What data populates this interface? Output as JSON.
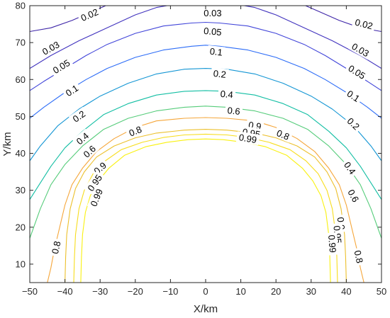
{
  "chart_data": {
    "type": "contour",
    "title": "",
    "xlabel": "X/km",
    "ylabel": "Y/km",
    "xlim": [
      -50,
      50
    ],
    "ylim": [
      5,
      80
    ],
    "xticks": [
      -50,
      -40,
      -30,
      -20,
      -10,
      0,
      10,
      20,
      30,
      40,
      50
    ],
    "yticks": [
      10,
      20,
      30,
      40,
      50,
      60,
      70,
      80
    ],
    "xtick_labels": [
      "−50",
      "−40",
      "−30",
      "−20",
      "−10",
      "0",
      "10",
      "20",
      "30",
      "40",
      "50"
    ],
    "ytick_labels": [
      "10",
      "20",
      "30",
      "40",
      "50",
      "60",
      "70",
      "80"
    ],
    "grid": false,
    "box": true,
    "levels": [
      {
        "level": "0.02",
        "color": "#3e26a8",
        "points": [
          [
            -50,
            73
          ],
          [
            -44,
            74
          ],
          [
            -38,
            76
          ],
          [
            -32,
            78.5
          ],
          [
            -26,
            81
          ]
        ],
        "mirror": true,
        "labels": [
          {
            "text": "0.02",
            "x": -33,
            "y": 77.5
          },
          {
            "text": "0.02",
            "x": 45,
            "y": 75
          }
        ]
      },
      {
        "level": "0.03",
        "color": "#4133be",
        "points": [
          [
            -50,
            63
          ],
          [
            -44,
            66.5
          ],
          [
            -36,
            70.5
          ],
          [
            -28,
            74
          ],
          [
            -20,
            77.5
          ],
          [
            -14,
            79.5
          ],
          [
            -8,
            80.5
          ],
          [
            0,
            81
          ]
        ],
        "mirror": true,
        "labels": [
          {
            "text": "0.03",
            "x": 2,
            "y": 78
          },
          {
            "text": "0.03",
            "x": -44,
            "y": 68.5
          },
          {
            "text": "0.03",
            "x": 44,
            "y": 68
          }
        ]
      },
      {
        "level": "0.05",
        "color": "#4145d9",
        "points": [
          [
            -50,
            57
          ],
          [
            -46,
            59.5
          ],
          [
            -40,
            63
          ],
          [
            -34,
            66.5
          ],
          [
            -28,
            69.5
          ],
          [
            -20,
            72.5
          ],
          [
            -12,
            74.5
          ],
          [
            -4,
            75.3
          ],
          [
            0,
            75.5
          ]
        ],
        "mirror": true,
        "labels": [
          {
            "text": "0.05",
            "x": 2,
            "y": 73
          },
          {
            "text": "0.05",
            "x": -41,
            "y": 63.5
          },
          {
            "text": "0.05",
            "x": 43,
            "y": 62
          }
        ]
      },
      {
        "level": "0.1",
        "color": "#2c6cf7",
        "points": [
          [
            -50,
            49.5
          ],
          [
            -46,
            52.5
          ],
          [
            -40,
            56.5
          ],
          [
            -34,
            60
          ],
          [
            -28,
            63
          ],
          [
            -20,
            66
          ],
          [
            -12,
            68
          ],
          [
            -4,
            69
          ],
          [
            0,
            69.3
          ]
        ],
        "mirror": true,
        "labels": [
          {
            "text": "0.1",
            "x": 3,
            "y": 67.5
          },
          {
            "text": "0.1",
            "x": -38,
            "y": 57
          },
          {
            "text": "0.1",
            "x": 42,
            "y": 55.5
          }
        ]
      },
      {
        "level": "0.2",
        "color": "#1496d4",
        "points": [
          [
            -50,
            38
          ],
          [
            -47,
            42
          ],
          [
            -42,
            47.5
          ],
          [
            -36,
            52
          ],
          [
            -30,
            55.5
          ],
          [
            -22,
            59
          ],
          [
            -14,
            61.5
          ],
          [
            -6,
            62.8
          ],
          [
            0,
            63
          ]
        ],
        "mirror": true,
        "labels": [
          {
            "text": "0.2",
            "x": 4,
            "y": 61.5
          },
          {
            "text": "0.2",
            "x": -36,
            "y": 50
          },
          {
            "text": "0.2",
            "x": 42,
            "y": 48
          }
        ]
      },
      {
        "level": "0.4",
        "color": "#12bea3",
        "points": [
          [
            -50,
            27.5
          ],
          [
            -48,
            30.5
          ],
          [
            -44,
            36.5
          ],
          [
            -40,
            41.5
          ],
          [
            -35,
            46
          ],
          [
            -29,
            50.5
          ],
          [
            -22,
            53.5
          ],
          [
            -14,
            55.8
          ],
          [
            -6,
            56.8
          ],
          [
            0,
            57
          ]
        ],
        "mirror": true,
        "labels": [
          {
            "text": "0.4",
            "x": 6,
            "y": 56
          },
          {
            "text": "0.4",
            "x": -35,
            "y": 44
          },
          {
            "text": "0.4",
            "x": 41,
            "y": 36
          }
        ]
      },
      {
        "level": "0.6",
        "color": "#55cc7a",
        "points": [
          [
            -50,
            17
          ],
          [
            -47,
            25
          ],
          [
            -44,
            31.5
          ],
          [
            -40,
            37
          ],
          [
            -35,
            42
          ],
          [
            -29,
            46.5
          ],
          [
            -22,
            49.5
          ],
          [
            -14,
            51.5
          ],
          [
            -6,
            52.5
          ],
          [
            0,
            52.8
          ]
        ],
        "mirror": true,
        "labels": [
          {
            "text": "0.6",
            "x": 8,
            "y": 51.5
          },
          {
            "text": "0.6",
            "x": -33,
            "y": 40.5
          },
          {
            "text": "0.6",
            "x": 42,
            "y": 28.5
          }
        ]
      },
      {
        "level": "0.8",
        "color": "#f5a63a",
        "points": [
          [
            -45,
            5
          ],
          [
            -44,
            9
          ],
          [
            -43,
            14
          ],
          [
            -41.5,
            20
          ],
          [
            -40,
            26
          ],
          [
            -38,
            31.5
          ],
          [
            -35,
            36
          ],
          [
            -31,
            40.5
          ],
          [
            -26,
            44
          ],
          [
            -20,
            47
          ],
          [
            -14,
            48.8
          ],
          [
            -6,
            49.5
          ],
          [
            0,
            49.7
          ]
        ],
        "mirror": true,
        "labels": [
          {
            "text": "0.8",
            "x": -20,
            "y": 46
          },
          {
            "text": "0.8",
            "x": 22,
            "y": 45
          },
          {
            "text": "0.8",
            "x": -42.5,
            "y": 14.5
          },
          {
            "text": "0.8",
            "x": 43.5,
            "y": 12
          }
        ]
      },
      {
        "level": "0.9",
        "color": "#ecc02c",
        "points": [
          [
            -40,
            5
          ],
          [
            -39.8,
            12
          ],
          [
            -39.5,
            18
          ],
          [
            -38.5,
            25
          ],
          [
            -37,
            30.5
          ],
          [
            -34.5,
            35
          ],
          [
            -31,
            39
          ],
          [
            -26,
            42
          ],
          [
            -20,
            44.2
          ],
          [
            -14,
            45.5
          ],
          [
            -6,
            46.3
          ],
          [
            0,
            46.5
          ]
        ],
        "mirror": true,
        "labels": [
          {
            "text": "0.9",
            "x": -30,
            "y": 36
          },
          {
            "text": "0.9",
            "x": 14,
            "y": 47.5
          },
          {
            "text": "0.9",
            "x": 38.5,
            "y": 21
          }
        ]
      },
      {
        "level": "0.95",
        "color": "#f7dd1f",
        "points": [
          [
            -37.5,
            5
          ],
          [
            -37.3,
            12
          ],
          [
            -37,
            18
          ],
          [
            -36,
            25
          ],
          [
            -34.5,
            30
          ],
          [
            -32,
            34.5
          ],
          [
            -28.5,
            38
          ],
          [
            -24,
            41
          ],
          [
            -18,
            43
          ],
          [
            -12,
            44.3
          ],
          [
            -6,
            45
          ],
          [
            0,
            45.2
          ]
        ],
        "mirror": true,
        "labels": [
          {
            "text": "0.95",
            "x": -31.5,
            "y": 32
          },
          {
            "text": "0.95",
            "x": 13,
            "y": 45.5
          },
          {
            "text": "0.95",
            "x": 37.5,
            "y": 18
          }
        ]
      },
      {
        "level": "0.99",
        "color": "#f9f10f",
        "points": [
          [
            -35.5,
            5
          ],
          [
            -35.3,
            12
          ],
          [
            -35,
            18
          ],
          [
            -34.2,
            24
          ],
          [
            -32.8,
            28.5
          ],
          [
            -30.5,
            32.5
          ],
          [
            -27.5,
            36
          ],
          [
            -23,
            39.5
          ],
          [
            -17,
            41.8
          ],
          [
            -11,
            43
          ],
          [
            -5,
            43.7
          ],
          [
            0,
            43.9
          ]
        ],
        "mirror": true,
        "labels": [
          {
            "text": "0.99",
            "x": -31,
            "y": 28
          },
          {
            "text": "0.99",
            "x": 12,
            "y": 44
          },
          {
            "text": "0.99",
            "x": 36,
            "y": 15.5
          }
        ]
      }
    ]
  }
}
